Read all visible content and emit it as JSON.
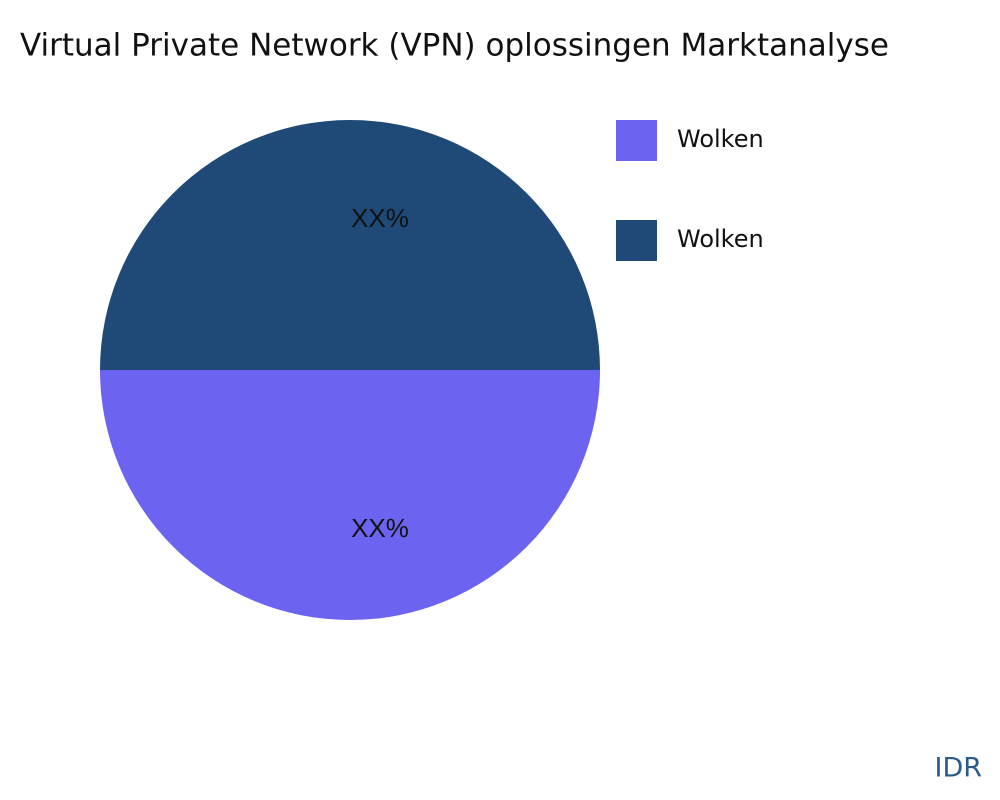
{
  "chart_data": {
    "type": "pie",
    "title": "Virtual Private Network (VPN) oplossingen Marktanalyse",
    "categories": [
      "Wolken",
      "Wolken"
    ],
    "values": [
      50,
      50
    ],
    "value_labels": [
      "XX%",
      "XX%"
    ],
    "colors": [
      "#6c63f0",
      "#1f4a78"
    ],
    "legend": "top-right"
  },
  "watermark": "IDR"
}
